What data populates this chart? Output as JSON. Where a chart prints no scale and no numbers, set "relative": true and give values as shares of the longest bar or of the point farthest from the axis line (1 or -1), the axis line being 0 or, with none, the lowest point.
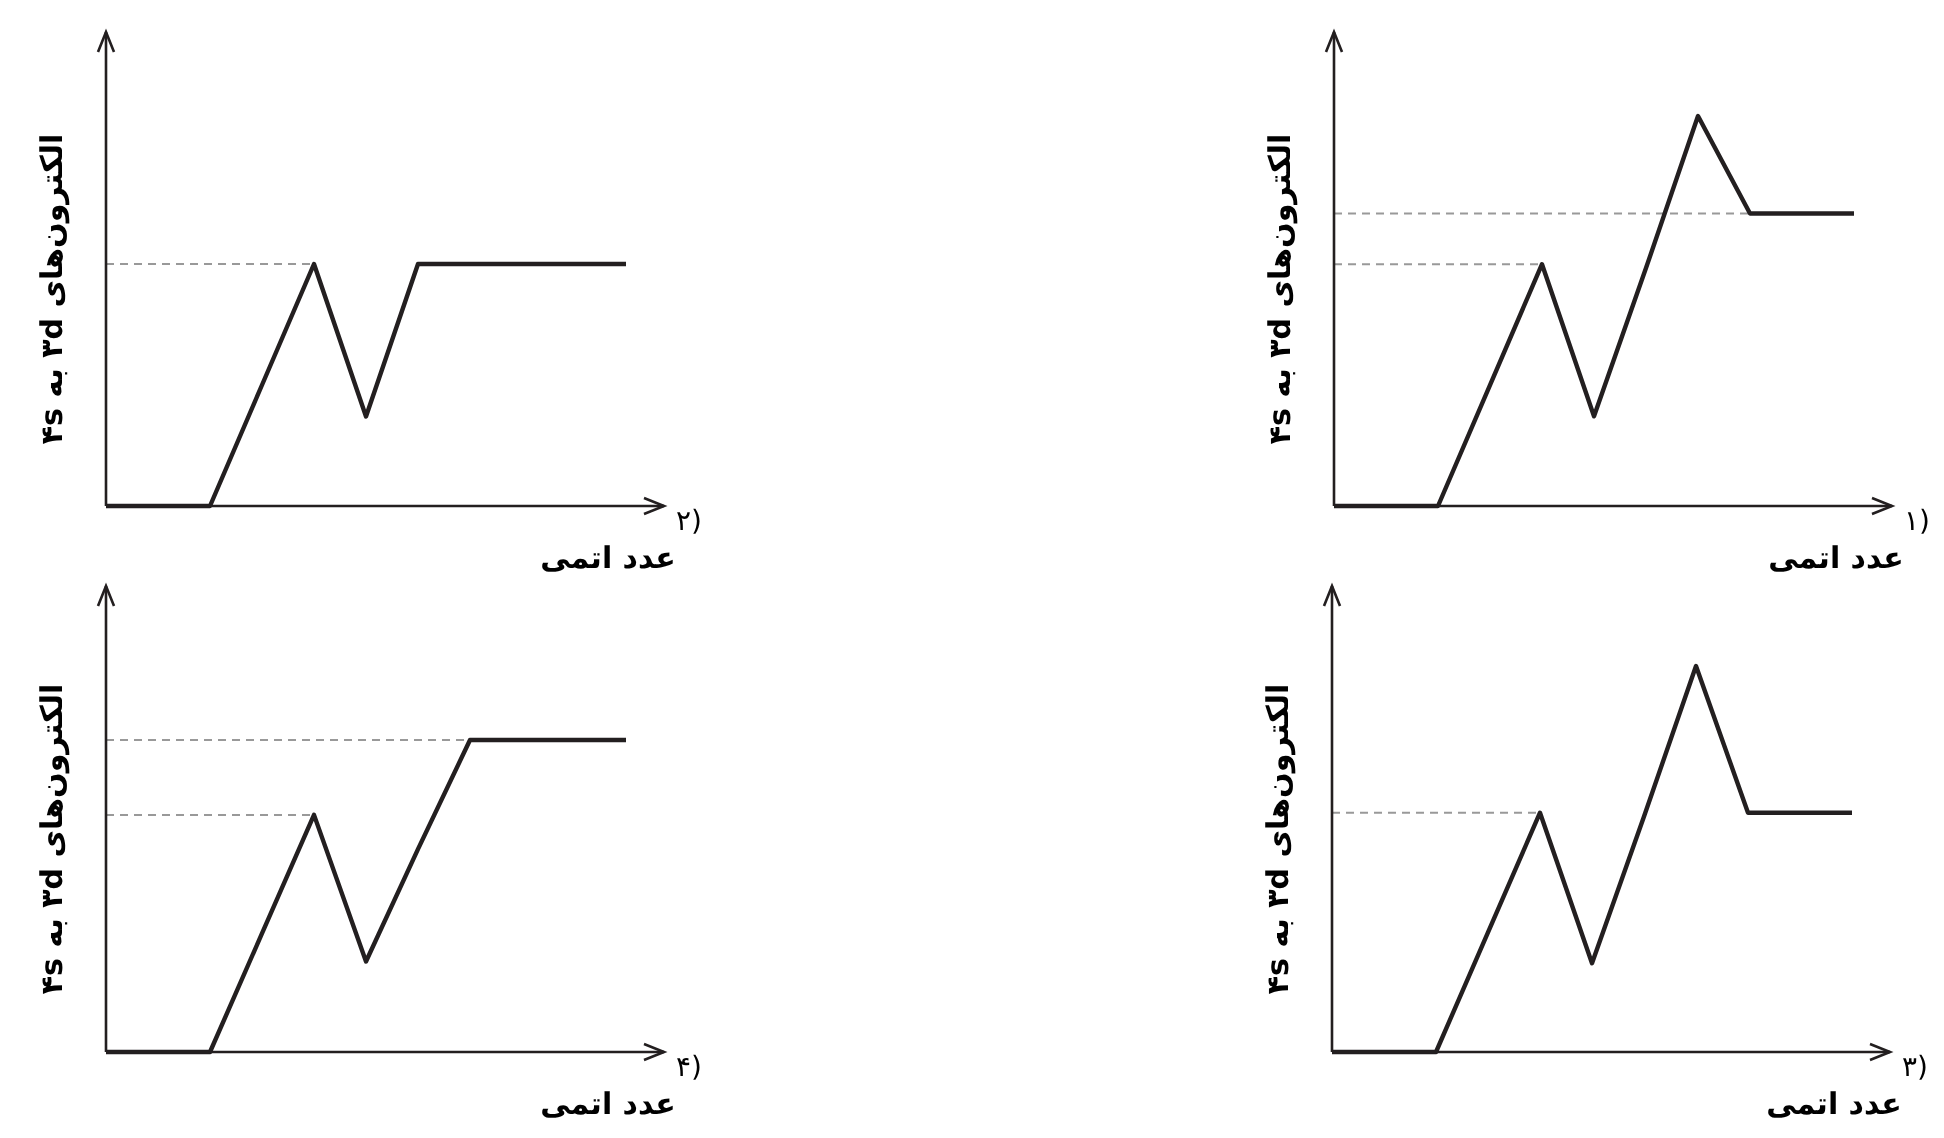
{
  "chart_data": [
    {
      "type": "line",
      "title": "۱)",
      "xlabel": "عدد اتمی",
      "ylabel": "الکترون‌های ۳d به ۴s",
      "relative": true,
      "tick_labels": false,
      "categories": [
        null,
        null,
        null,
        null,
        null,
        null,
        null,
        null,
        null,
        null,
        null
      ],
      "series": [
        {
          "color": "#231f20",
          "values": [
            0,
            0,
            0,
            0.31,
            0.62,
            0.23,
            0.61,
            1,
            0.75,
            0.75,
            0.75
          ]
        }
      ],
      "ref_lines": [
        {
          "axis": "y",
          "value": 0.62,
          "color": "#999999",
          "line_style": "dashed"
        },
        {
          "axis": "y",
          "value": 0.75,
          "color": "#999999",
          "line_style": "dashed"
        }
      ]
    },
    {
      "type": "line",
      "title": "۲)",
      "xlabel": "عدد اتمی",
      "ylabel": "الکترون‌های ۳d به ۴s",
      "relative": true,
      "tick_labels": false,
      "categories": [
        null,
        null,
        null,
        null,
        null,
        null,
        null,
        null,
        null,
        null,
        null
      ],
      "series": [
        {
          "color": "#231f20",
          "values": [
            0,
            0,
            0,
            0.5,
            1,
            0.37,
            1,
            1,
            1,
            1,
            1
          ]
        }
      ],
      "ref_lines": [
        {
          "axis": "y",
          "value": 1,
          "color": "#999999",
          "line_style": "dashed"
        }
      ]
    },
    {
      "type": "line",
      "title": "۳)",
      "xlabel": "عدد اتمی",
      "ylabel": "الکترون‌های ۳d به ۴s",
      "relative": true,
      "tick_labels": false,
      "categories": [
        null,
        null,
        null,
        null,
        null,
        null,
        null,
        null,
        null,
        null,
        null
      ],
      "series": [
        {
          "color": "#231f20",
          "values": [
            0,
            0,
            0,
            0.31,
            0.62,
            0.23,
            0.61,
            1,
            0.62,
            0.62,
            0.62
          ]
        }
      ],
      "ref_lines": [
        {
          "axis": "y",
          "value": 0.62,
          "color": "#999999",
          "line_style": "dashed"
        }
      ]
    },
    {
      "type": "line",
      "title": "۴)",
      "xlabel": "عدد اتمی",
      "ylabel": "الکترون‌های ۳d به ۴s",
      "relative": true,
      "tick_labels": false,
      "categories": [
        null,
        null,
        null,
        null,
        null,
        null,
        null,
        null,
        null,
        null,
        null
      ],
      "series": [
        {
          "color": "#231f20",
          "values": [
            0,
            0,
            0,
            0.38,
            0.76,
            0.29,
            0.65,
            1,
            1,
            1,
            1
          ]
        }
      ],
      "ref_lines": [
        {
          "axis": "y",
          "value": 0.76,
          "color": "#999999",
          "line_style": "dashed"
        },
        {
          "axis": "y",
          "value": 1,
          "color": "#999999",
          "line_style": "dashed"
        }
      ]
    }
  ]
}
